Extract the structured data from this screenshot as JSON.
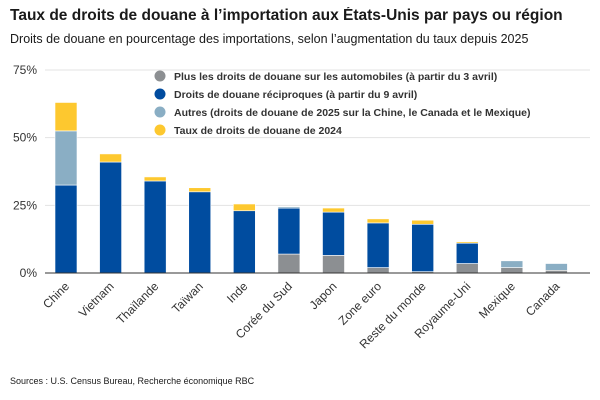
{
  "chart_data": {
    "type": "bar",
    "stacked": true,
    "title": "Taux de droits de douane à l’importation aux États-Unis par pays ou région",
    "subtitle": "Droits de douane en pourcentage des importations, selon l’augmentation du taux depuis 2025",
    "source": "Sources : U.S. Census Bureau, Recherche économique RBC",
    "ylim": [
      0,
      75
    ],
    "yticks": [
      0,
      25,
      50,
      75
    ],
    "ytick_labels": [
      "0%",
      "25%",
      "50%",
      "75%"
    ],
    "grid": true,
    "legend_position": "top-right",
    "categories": [
      "Chine",
      "Vietnam",
      "Thaïlande",
      "Taïwan",
      "Inde",
      "Corée du Sud",
      "Japon",
      "Zone euro",
      "Reste du monde",
      "Royaume-Uni",
      "Mexique",
      "Canada"
    ],
    "series": [
      {
        "name": "Plus les droits de douane sur les automobiles (à partir du 3 avril)",
        "color": "#8c8f92",
        "values": [
          0,
          0,
          0,
          0,
          0,
          7,
          6.5,
          2,
          0.5,
          3.5,
          2,
          1
        ]
      },
      {
        "name": "Droits de douane réciproques (à partir du 9 avril)",
        "color": "#004c9f",
        "values": [
          32.5,
          41,
          34,
          30,
          23,
          17,
          16,
          16.5,
          17.5,
          7.5,
          0,
          0
        ]
      },
      {
        "name": "Autres (droits de douane de 2025 sur la Chine, le Canada et le Mexique)",
        "color": "#8aaec4",
        "values": [
          20,
          0,
          0,
          0,
          0,
          0.5,
          0,
          0,
          0,
          0,
          2.5,
          2.5
        ]
      },
      {
        "name": "Taux de droits de douane de 2024",
        "color": "#fdc82f",
        "values": [
          10.5,
          3,
          1.5,
          1.5,
          2.5,
          0,
          1.5,
          1.5,
          1.5,
          0.5,
          0,
          0
        ]
      }
    ],
    "legend_order": [
      0,
      1,
      2,
      3
    ]
  }
}
